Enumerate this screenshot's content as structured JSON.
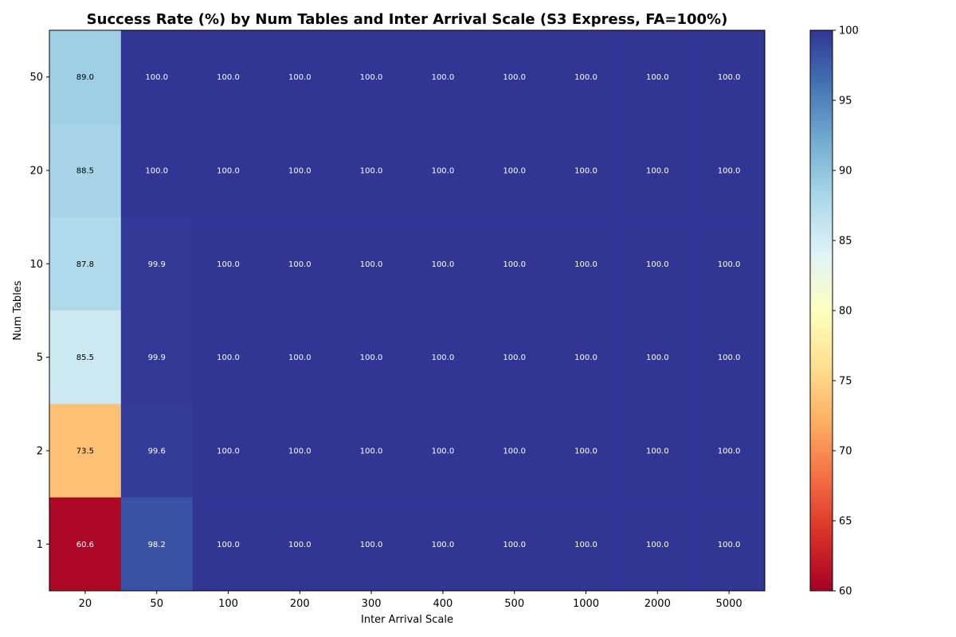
{
  "chart_data": {
    "type": "heatmap",
    "title": "Success Rate (%) by Num Tables and Inter Arrival Scale (S3 Express, FA=100%)",
    "xlabel": "Inter Arrival Scale",
    "ylabel": "Num Tables",
    "x_categories": [
      "20",
      "50",
      "100",
      "200",
      "300",
      "400",
      "500",
      "1000",
      "2000",
      "5000"
    ],
    "y_categories": [
      "50",
      "20",
      "10",
      "5",
      "2",
      "1"
    ],
    "values": [
      [
        89.0,
        100.0,
        100.0,
        100.0,
        100.0,
        100.0,
        100.0,
        100.0,
        100.0,
        100.0
      ],
      [
        88.5,
        100.0,
        100.0,
        100.0,
        100.0,
        100.0,
        100.0,
        100.0,
        100.0,
        100.0
      ],
      [
        87.8,
        99.9,
        100.0,
        100.0,
        100.0,
        100.0,
        100.0,
        100.0,
        100.0,
        100.0
      ],
      [
        85.5,
        99.9,
        100.0,
        100.0,
        100.0,
        100.0,
        100.0,
        100.0,
        100.0,
        100.0
      ],
      [
        73.5,
        99.6,
        100.0,
        100.0,
        100.0,
        100.0,
        100.0,
        100.0,
        100.0,
        100.0
      ],
      [
        60.6,
        98.2,
        100.0,
        100.0,
        100.0,
        100.0,
        100.0,
        100.0,
        100.0,
        100.0
      ]
    ],
    "colorbar": {
      "colormap": "RdYlBu",
      "range": [
        60,
        100
      ],
      "ticks": [
        "60",
        "65",
        "70",
        "75",
        "80",
        "85",
        "90",
        "95",
        "100"
      ]
    },
    "grid": false,
    "legend": "colorbar-right"
  }
}
